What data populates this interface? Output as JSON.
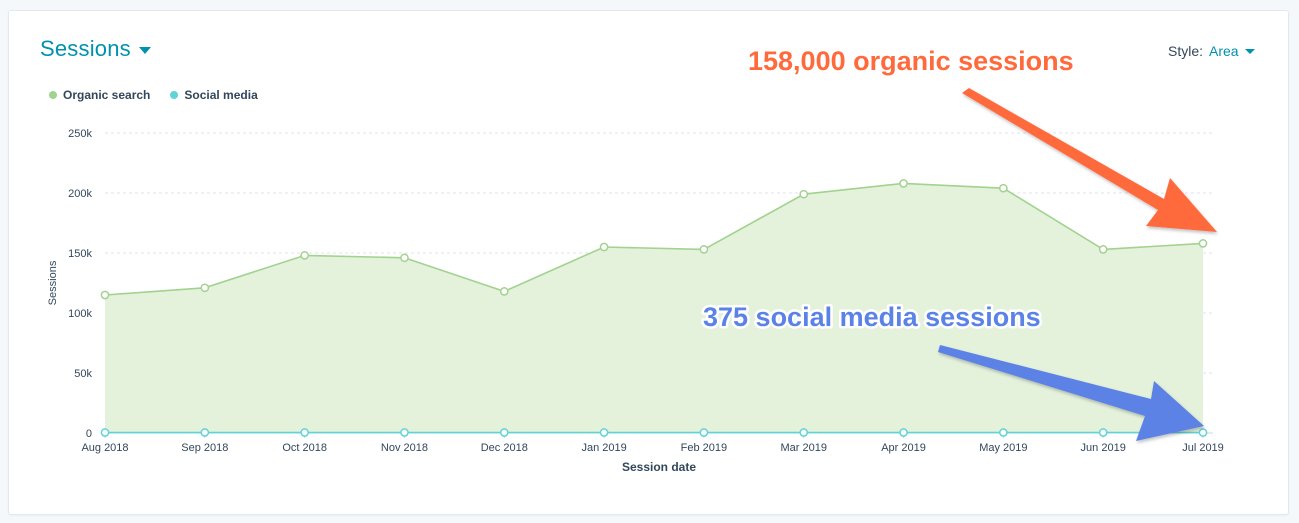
{
  "header": {
    "title": "Sessions",
    "style_label": "Style:",
    "style_value": "Area"
  },
  "colors": {
    "organic": "#a2d28f",
    "organic_fill": "#e4f2dc",
    "social": "#5fd3d8",
    "title": "#0091ae",
    "annotation_orange": "#ff6a3d",
    "annotation_blue": "#5b82e6"
  },
  "chart_data": {
    "type": "area",
    "xlabel": "Session date",
    "ylabel": "Sessions",
    "ylim": [
      0,
      250000
    ],
    "yticks": [
      {
        "value": 0,
        "label": "0"
      },
      {
        "value": 50000,
        "label": "50k"
      },
      {
        "value": 100000,
        "label": "100k"
      },
      {
        "value": 150000,
        "label": "150k"
      },
      {
        "value": 200000,
        "label": "200k"
      },
      {
        "value": 250000,
        "label": "250k"
      }
    ],
    "grid": true,
    "legend": "top-left",
    "categories": [
      "Aug 2018",
      "Sep 2018",
      "Oct 2018",
      "Nov 2018",
      "Dec 2018",
      "Jan 2019",
      "Feb 2019",
      "Mar 2019",
      "Apr 2019",
      "May 2019",
      "Jun 2019",
      "Jul 2019"
    ],
    "series": [
      {
        "name": "Organic search",
        "values": [
          115000,
          121000,
          148000,
          146000,
          118000,
          155000,
          153000,
          199000,
          208000,
          204000,
          153000,
          158000
        ]
      },
      {
        "name": "Social media",
        "values": [
          400,
          400,
          400,
          400,
          400,
          400,
          400,
          400,
          400,
          400,
          400,
          375
        ]
      }
    ],
    "annotations": [
      {
        "text": "158,000 organic sessions",
        "color": "orange",
        "points_to": "Organic search, Jul 2019"
      },
      {
        "text": "375 social media sessions",
        "color": "blue",
        "points_to": "Social media, Jul 2019"
      }
    ]
  }
}
